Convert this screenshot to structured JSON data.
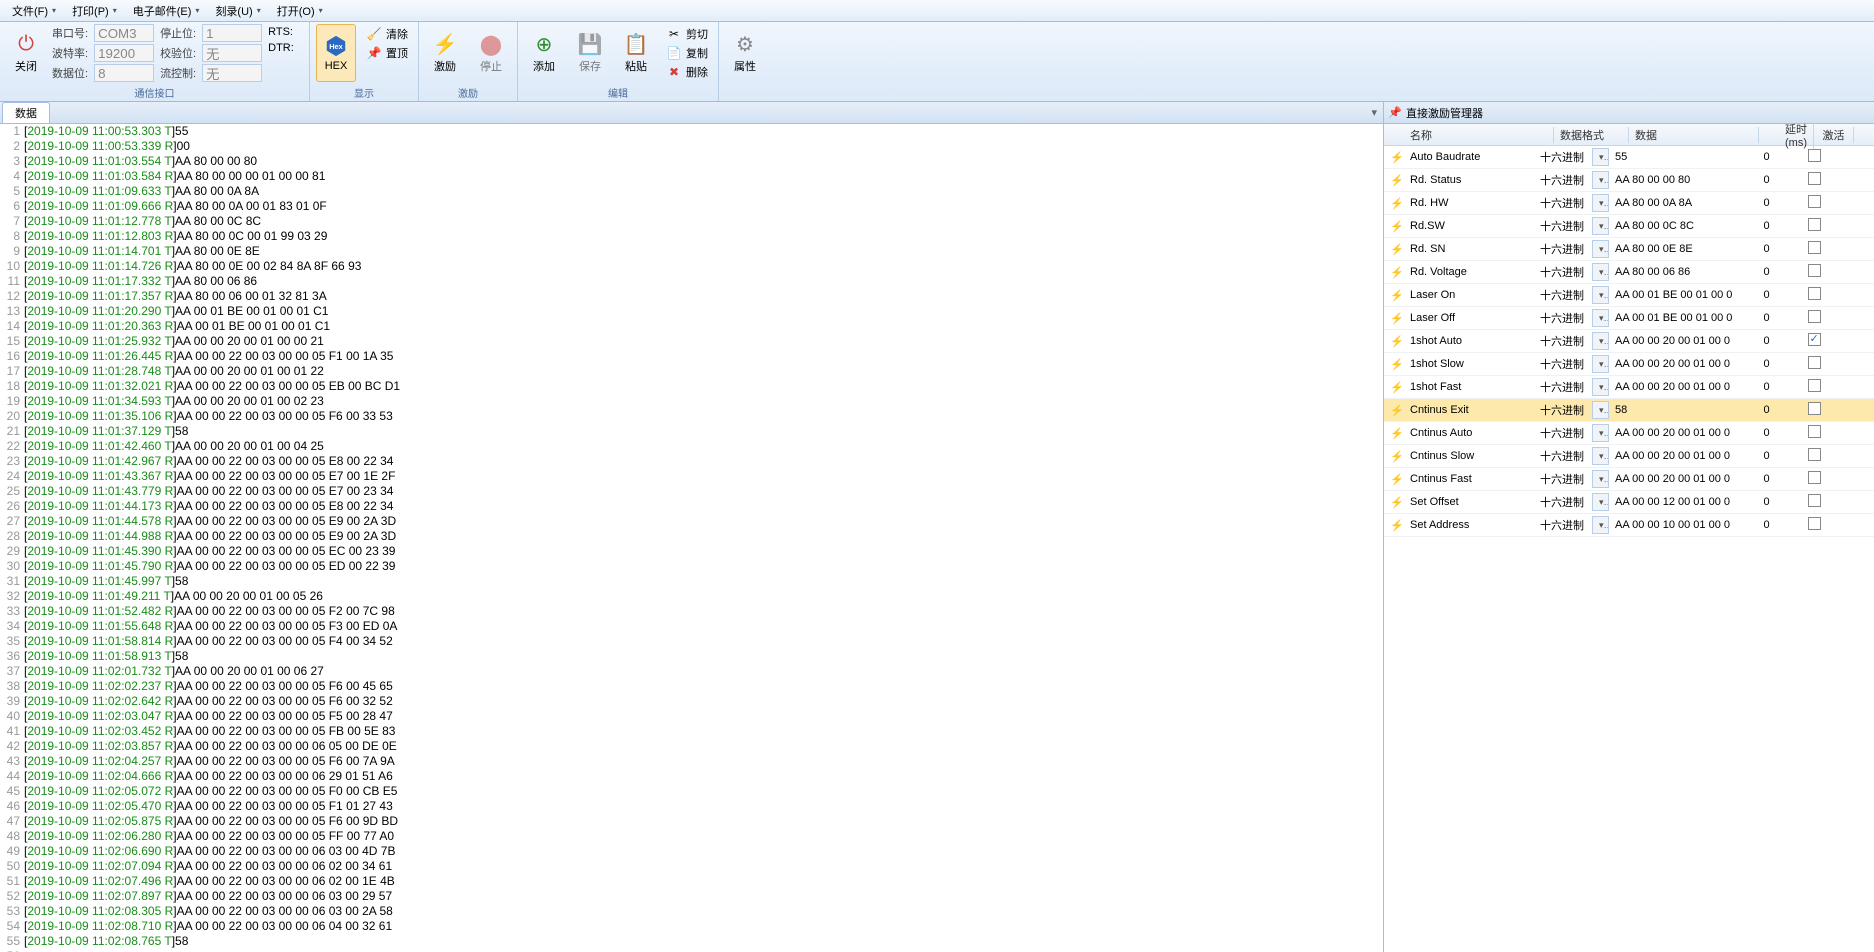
{
  "menu": {
    "items": [
      {
        "label": "文件(F)"
      },
      {
        "label": "打印(P)"
      },
      {
        "label": "电子邮件(E)"
      },
      {
        "label": "刻录(U)"
      },
      {
        "label": "打开(O)"
      }
    ]
  },
  "ribbon": {
    "close_btn": "关闭",
    "comm": {
      "port_label": "串口号:",
      "port_value": "COM3",
      "baud_label": "波特率:",
      "baud_value": "19200",
      "databits_label": "数据位:",
      "databits_value": "8",
      "stop_label": "停止位:",
      "stop_value": "1",
      "parity_label": "校验位:",
      "parity_value": "无",
      "flow_label": "流控制:",
      "flow_value": "无",
      "rts_label": "RTS:",
      "dtr_label": "DTR:",
      "group_label": "通信接口"
    },
    "display": {
      "hex_btn": "HEX",
      "clear_btn": "清除",
      "top_btn": "置顶",
      "group_label": "显示"
    },
    "stim": {
      "stim_btn": "激励",
      "stop_btn": "停止",
      "group_label": "激励"
    },
    "edit": {
      "add_btn": "添加",
      "save_btn": "保存",
      "paste_btn": "粘贴",
      "cut_btn": "剪切",
      "copy_btn": "复制",
      "delete_btn": "删除",
      "group_label": "编辑"
    },
    "props": {
      "props_btn": "属性"
    }
  },
  "left_panel": {
    "tab_label": "数据"
  },
  "log": {
    "lines": [
      {
        "n": 1,
        "ts": "2019-10-09 11:00:53.303",
        "dir": "T",
        "data": "55"
      },
      {
        "n": 2,
        "ts": "2019-10-09 11:00:53.339",
        "dir": "R",
        "data": "00"
      },
      {
        "n": 3,
        "ts": "2019-10-09 11:01:03.554",
        "dir": "T",
        "data": "AA 80 00 00 80"
      },
      {
        "n": 4,
        "ts": "2019-10-09 11:01:03.584",
        "dir": "R",
        "data": "AA 80 00 00 00 01 00 00 81"
      },
      {
        "n": 5,
        "ts": "2019-10-09 11:01:09.633",
        "dir": "T",
        "data": "AA 80 00 0A 8A"
      },
      {
        "n": 6,
        "ts": "2019-10-09 11:01:09.666",
        "dir": "R",
        "data": "AA 80 00 0A 00 01 83 01 0F"
      },
      {
        "n": 7,
        "ts": "2019-10-09 11:01:12.778",
        "dir": "T",
        "data": "AA 80 00 0C 8C"
      },
      {
        "n": 8,
        "ts": "2019-10-09 11:01:12.803",
        "dir": "R",
        "data": "AA 80 00 0C 00 01 99 03 29"
      },
      {
        "n": 9,
        "ts": "2019-10-09 11:01:14.701",
        "dir": "T",
        "data": "AA 80 00 0E 8E"
      },
      {
        "n": 10,
        "ts": "2019-10-09 11:01:14.726",
        "dir": "R",
        "data": "AA 80 00 0E 00 02 84 8A 8F 66 93"
      },
      {
        "n": 11,
        "ts": "2019-10-09 11:01:17.332",
        "dir": "T",
        "data": "AA 80 00 06 86"
      },
      {
        "n": 12,
        "ts": "2019-10-09 11:01:17.357",
        "dir": "R",
        "data": "AA 80 00 06 00 01 32 81 3A"
      },
      {
        "n": 13,
        "ts": "2019-10-09 11:01:20.290",
        "dir": "T",
        "data": "AA 00 01 BE 00 01 00 01 C1"
      },
      {
        "n": 14,
        "ts": "2019-10-09 11:01:20.363",
        "dir": "R",
        "data": "AA 00 01 BE 00 01 00 01 C1"
      },
      {
        "n": 15,
        "ts": "2019-10-09 11:01:25.932",
        "dir": "T",
        "data": "AA 00 00 20 00 01 00 00 21"
      },
      {
        "n": 16,
        "ts": "2019-10-09 11:01:26.445",
        "dir": "R",
        "data": "AA 00 00 22 00 03 00 00 05 F1 00 1A 35"
      },
      {
        "n": 17,
        "ts": "2019-10-09 11:01:28.748",
        "dir": "T",
        "data": "AA 00 00 20 00 01 00 01 22"
      },
      {
        "n": 18,
        "ts": "2019-10-09 11:01:32.021",
        "dir": "R",
        "data": "AA 00 00 22 00 03 00 00 05 EB 00 BC D1"
      },
      {
        "n": 19,
        "ts": "2019-10-09 11:01:34.593",
        "dir": "T",
        "data": "AA 00 00 20 00 01 00 02 23"
      },
      {
        "n": 20,
        "ts": "2019-10-09 11:01:35.106",
        "dir": "R",
        "data": "AA 00 00 22 00 03 00 00 05 F6 00 33 53"
      },
      {
        "n": 21,
        "ts": "2019-10-09 11:01:37.129",
        "dir": "T",
        "data": "58"
      },
      {
        "n": 22,
        "ts": "2019-10-09 11:01:42.460",
        "dir": "T",
        "data": "AA 00 00 20 00 01 00 04 25"
      },
      {
        "n": 23,
        "ts": "2019-10-09 11:01:42.967",
        "dir": "R",
        "data": "AA 00 00 22 00 03 00 00 05 E8 00 22 34"
      },
      {
        "n": 24,
        "ts": "2019-10-09 11:01:43.367",
        "dir": "R",
        "data": "AA 00 00 22 00 03 00 00 05 E7 00 1E 2F"
      },
      {
        "n": 25,
        "ts": "2019-10-09 11:01:43.779",
        "dir": "R",
        "data": "AA 00 00 22 00 03 00 00 05 E7 00 23 34"
      },
      {
        "n": 26,
        "ts": "2019-10-09 11:01:44.173",
        "dir": "R",
        "data": "AA 00 00 22 00 03 00 00 05 E8 00 22 34"
      },
      {
        "n": 27,
        "ts": "2019-10-09 11:01:44.578",
        "dir": "R",
        "data": "AA 00 00 22 00 03 00 00 05 E9 00 2A 3D"
      },
      {
        "n": 28,
        "ts": "2019-10-09 11:01:44.988",
        "dir": "R",
        "data": "AA 00 00 22 00 03 00 00 05 E9 00 2A 3D"
      },
      {
        "n": 29,
        "ts": "2019-10-09 11:01:45.390",
        "dir": "R",
        "data": "AA 00 00 22 00 03 00 00 05 EC 00 23 39"
      },
      {
        "n": 30,
        "ts": "2019-10-09 11:01:45.790",
        "dir": "R",
        "data": "AA 00 00 22 00 03 00 00 05 ED 00 22 39"
      },
      {
        "n": 31,
        "ts": "2019-10-09 11:01:45.997",
        "dir": "T",
        "data": "58"
      },
      {
        "n": 32,
        "ts": "2019-10-09 11:01:49.211",
        "dir": "T",
        "data": "AA 00 00 20 00 01 00 05 26"
      },
      {
        "n": 33,
        "ts": "2019-10-09 11:01:52.482",
        "dir": "R",
        "data": "AA 00 00 22 00 03 00 00 05 F2 00 7C 98"
      },
      {
        "n": 34,
        "ts": "2019-10-09 11:01:55.648",
        "dir": "R",
        "data": "AA 00 00 22 00 03 00 00 05 F3 00 ED 0A"
      },
      {
        "n": 35,
        "ts": "2019-10-09 11:01:58.814",
        "dir": "R",
        "data": "AA 00 00 22 00 03 00 00 05 F4 00 34 52"
      },
      {
        "n": 36,
        "ts": "2019-10-09 11:01:58.913",
        "dir": "T",
        "data": "58"
      },
      {
        "n": 37,
        "ts": "2019-10-09 11:02:01.732",
        "dir": "T",
        "data": "AA 00 00 20 00 01 00 06 27"
      },
      {
        "n": 38,
        "ts": "2019-10-09 11:02:02.237",
        "dir": "R",
        "data": "AA 00 00 22 00 03 00 00 05 F6 00 45 65"
      },
      {
        "n": 39,
        "ts": "2019-10-09 11:02:02.642",
        "dir": "R",
        "data": "AA 00 00 22 00 03 00 00 05 F6 00 32 52"
      },
      {
        "n": 40,
        "ts": "2019-10-09 11:02:03.047",
        "dir": "R",
        "data": "AA 00 00 22 00 03 00 00 05 F5 00 28 47"
      },
      {
        "n": 41,
        "ts": "2019-10-09 11:02:03.452",
        "dir": "R",
        "data": "AA 00 00 22 00 03 00 00 05 FB 00 5E 83"
      },
      {
        "n": 42,
        "ts": "2019-10-09 11:02:03.857",
        "dir": "R",
        "data": "AA 00 00 22 00 03 00 00 06 05 00 DE 0E"
      },
      {
        "n": 43,
        "ts": "2019-10-09 11:02:04.257",
        "dir": "R",
        "data": "AA 00 00 22 00 03 00 00 05 F6 00 7A 9A"
      },
      {
        "n": 44,
        "ts": "2019-10-09 11:02:04.666",
        "dir": "R",
        "data": "AA 00 00 22 00 03 00 00 06 29 01 51 A6"
      },
      {
        "n": 45,
        "ts": "2019-10-09 11:02:05.072",
        "dir": "R",
        "data": "AA 00 00 22 00 03 00 00 05 F0 00 CB E5"
      },
      {
        "n": 46,
        "ts": "2019-10-09 11:02:05.470",
        "dir": "R",
        "data": "AA 00 00 22 00 03 00 00 05 F1 01 27 43"
      },
      {
        "n": 47,
        "ts": "2019-10-09 11:02:05.875",
        "dir": "R",
        "data": "AA 00 00 22 00 03 00 00 05 F6 00 9D BD"
      },
      {
        "n": 48,
        "ts": "2019-10-09 11:02:06.280",
        "dir": "R",
        "data": "AA 00 00 22 00 03 00 00 05 FF 00 77 A0"
      },
      {
        "n": 49,
        "ts": "2019-10-09 11:02:06.690",
        "dir": "R",
        "data": "AA 00 00 22 00 03 00 00 06 03 00 4D 7B"
      },
      {
        "n": 50,
        "ts": "2019-10-09 11:02:07.094",
        "dir": "R",
        "data": "AA 00 00 22 00 03 00 00 06 02 00 34 61"
      },
      {
        "n": 51,
        "ts": "2019-10-09 11:02:07.496",
        "dir": "R",
        "data": "AA 00 00 22 00 03 00 00 06 02 00 1E 4B"
      },
      {
        "n": 52,
        "ts": "2019-10-09 11:02:07.897",
        "dir": "R",
        "data": "AA 00 00 22 00 03 00 00 06 03 00 29 57"
      },
      {
        "n": 53,
        "ts": "2019-10-09 11:02:08.305",
        "dir": "R",
        "data": "AA 00 00 22 00 03 00 00 06 03 00 2A 58"
      },
      {
        "n": 54,
        "ts": "2019-10-09 11:02:08.710",
        "dir": "R",
        "data": "AA 00 00 22 00 03 00 00 06 04 00 32 61"
      },
      {
        "n": 55,
        "ts": "2019-10-09 11:02:08.765",
        "dir": "T",
        "data": "58"
      },
      {
        "n": 56,
        "ts": "",
        "dir": "",
        "data": ""
      }
    ]
  },
  "right_panel": {
    "title": "直接激励管理器",
    "columns": {
      "name": "名称",
      "fmt": "数据格式",
      "data": "数据",
      "delay": "延时(ms)",
      "active": "激活"
    },
    "rows": [
      {
        "name": "Auto Baudrate",
        "fmt": "十六进制",
        "data": "55",
        "delay": "0",
        "active": false
      },
      {
        "name": "Rd. Status",
        "fmt": "十六进制",
        "data": "AA 80 00 00 80",
        "delay": "0",
        "active": false
      },
      {
        "name": "Rd. HW",
        "fmt": "十六进制",
        "data": "AA 80 00 0A 8A",
        "delay": "0",
        "active": false
      },
      {
        "name": "Rd.SW",
        "fmt": "十六进制",
        "data": "AA 80 00 0C 8C",
        "delay": "0",
        "active": false
      },
      {
        "name": "Rd. SN",
        "fmt": "十六进制",
        "data": "AA 80 00 0E 8E",
        "delay": "0",
        "active": false
      },
      {
        "name": "Rd. Voltage",
        "fmt": "十六进制",
        "data": "AA 80 00 06 86",
        "delay": "0",
        "active": false
      },
      {
        "name": "Laser On",
        "fmt": "十六进制",
        "data": "AA 00 01 BE 00 01 00 0",
        "delay": "0",
        "active": false
      },
      {
        "name": "Laser Off",
        "fmt": "十六进制",
        "data": "AA 00 01 BE 00 01 00 0",
        "delay": "0",
        "active": false
      },
      {
        "name": "1shot Auto",
        "fmt": "十六进制",
        "data": "AA 00 00 20 00 01 00 0",
        "delay": "0",
        "active": true
      },
      {
        "name": "1shot Slow",
        "fmt": "十六进制",
        "data": "AA 00 00 20 00 01 00 0",
        "delay": "0",
        "active": false
      },
      {
        "name": "1shot Fast",
        "fmt": "十六进制",
        "data": "AA 00 00 20 00 01 00 0",
        "delay": "0",
        "active": false
      },
      {
        "name": "Cntinus Exit",
        "fmt": "十六进制",
        "data": "58",
        "delay": "0",
        "active": false,
        "selected": true
      },
      {
        "name": "Cntinus Auto",
        "fmt": "十六进制",
        "data": "AA 00 00 20 00 01 00 0",
        "delay": "0",
        "active": false
      },
      {
        "name": "Cntinus Slow",
        "fmt": "十六进制",
        "data": "AA 00 00 20 00 01 00 0",
        "delay": "0",
        "active": false
      },
      {
        "name": "Cntinus Fast",
        "fmt": "十六进制",
        "data": "AA 00 00 20 00 01 00 0",
        "delay": "0",
        "active": false
      },
      {
        "name": "Set Offset",
        "fmt": "十六进制",
        "data": "AA 00 00 12 00 01 00 0",
        "delay": "0",
        "active": false
      },
      {
        "name": "Set Address",
        "fmt": "十六进制",
        "data": "AA 00 00 10 00 01 00 0",
        "delay": "0",
        "active": false
      }
    ]
  }
}
